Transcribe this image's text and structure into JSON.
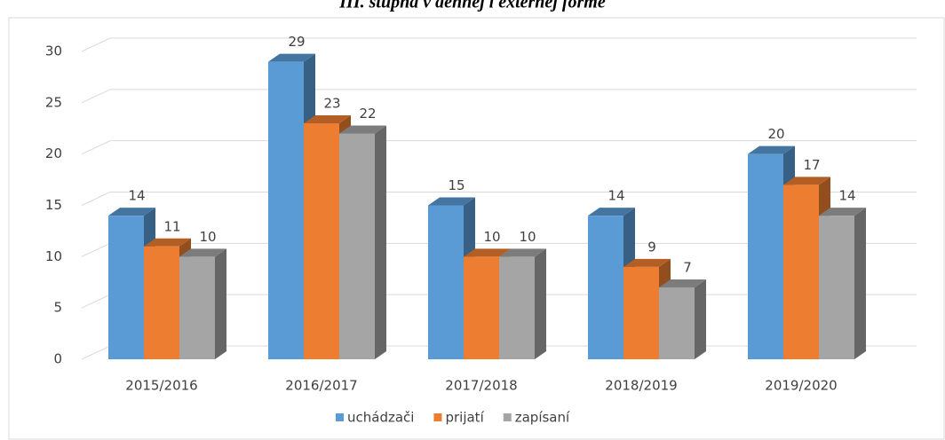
{
  "chart_data": {
    "type": "bar3d",
    "title": "III. stupňa v dennej i externej forme",
    "categories": [
      "2015/2016",
      "2016/2017",
      "2017/2018",
      "2018/2019",
      "2019/2020"
    ],
    "series": [
      {
        "name": "uchádzači",
        "color": "#5b9bd5",
        "values": [
          14,
          29,
          15,
          14,
          20
        ]
      },
      {
        "name": "prijatí",
        "color": "#ed7d31",
        "values": [
          11,
          23,
          10,
          9,
          17
        ]
      },
      {
        "name": "zapísaní",
        "color": "#a5a5a5",
        "values": [
          10,
          22,
          10,
          7,
          14
        ]
      }
    ],
    "ylim": [
      0,
      30
    ],
    "yticks": [
      0,
      5,
      10,
      15,
      20,
      25,
      30
    ],
    "grid": true,
    "legend": "bottom"
  }
}
